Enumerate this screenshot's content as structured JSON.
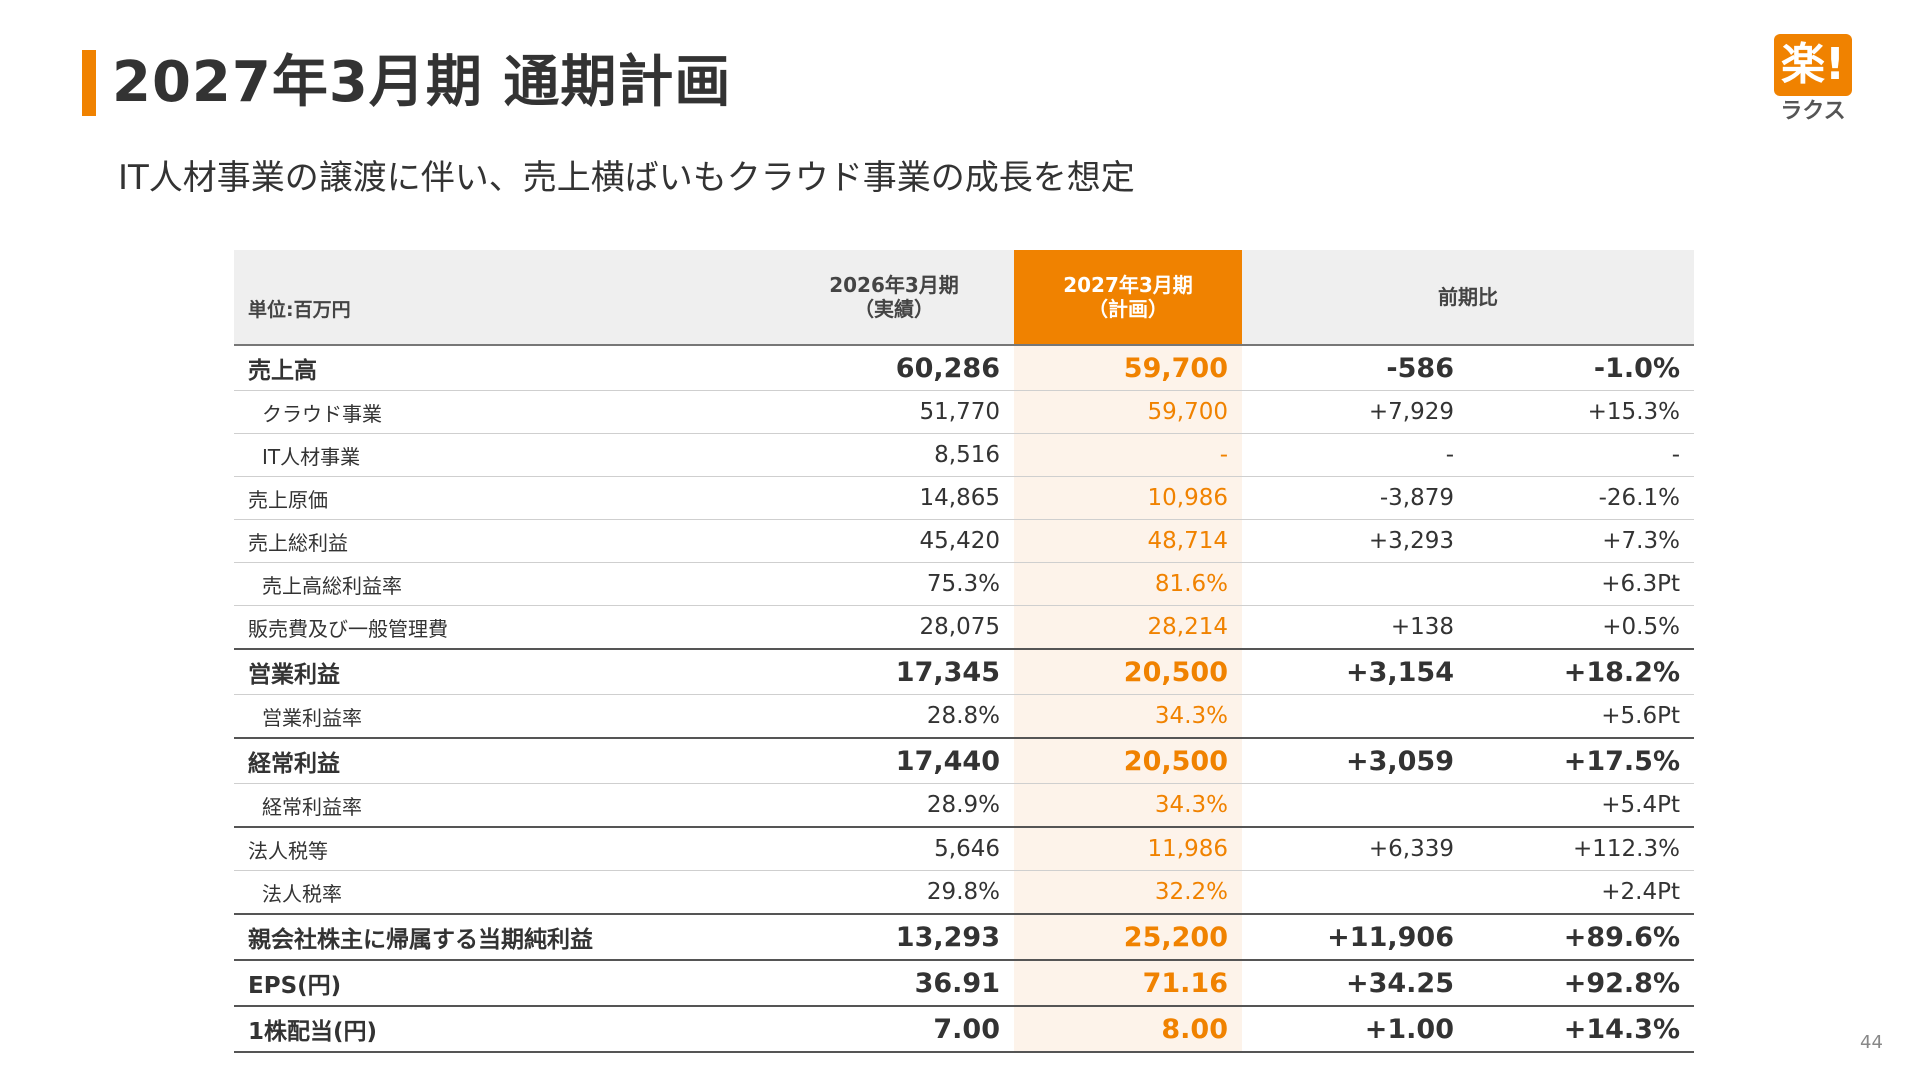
{
  "header": {
    "title": "2027年3月期 通期計画",
    "subtitle": "IT人材事業の譲渡に伴い、売上横ばいもクラウド事業の成長を想定"
  },
  "logo": {
    "mark": "楽!",
    "text": "ラクス"
  },
  "page_number": "44",
  "colors": {
    "accent": "#f08200",
    "accent_bg": "#fdf3ea",
    "header_bg": "#efefef"
  },
  "table": {
    "headers": {
      "unit": "単位:百万円",
      "prev_line1": "2026年3月期",
      "prev_line2": "（実績）",
      "plan_line1": "2027年3月期",
      "plan_line2": "（計画）",
      "diff": "前期比"
    },
    "rows": [
      {
        "label": "売上高",
        "prev": "60,286",
        "plan": "59,700",
        "diff": "-586",
        "pct": "-1.0%"
      },
      {
        "label": "クラウド事業",
        "prev": "51,770",
        "plan": "59,700",
        "diff": "+7,929",
        "pct": "+15.3%"
      },
      {
        "label": "IT人材事業",
        "prev": "8,516",
        "plan": "-",
        "diff": "-",
        "pct": "-"
      },
      {
        "label": "売上原価",
        "prev": "14,865",
        "plan": "10,986",
        "diff": "-3,879",
        "pct": "-26.1%"
      },
      {
        "label": "売上総利益",
        "prev": "45,420",
        "plan": "48,714",
        "diff": "+3,293",
        "pct": "+7.3%"
      },
      {
        "label": "売上高総利益率",
        "prev": "75.3%",
        "plan": "81.6%",
        "diff": "",
        "pct": "+6.3Pt"
      },
      {
        "label": "販売費及び一般管理費",
        "prev": "28,075",
        "plan": "28,214",
        "diff": "+138",
        "pct": "+0.5%"
      },
      {
        "label": "営業利益",
        "prev": "17,345",
        "plan": "20,500",
        "diff": "+3,154",
        "pct": "+18.2%"
      },
      {
        "label": "営業利益率",
        "prev": "28.8%",
        "plan": "34.3%",
        "diff": "",
        "pct": "+5.6Pt"
      },
      {
        "label": "経常利益",
        "prev": "17,440",
        "plan": "20,500",
        "diff": "+3,059",
        "pct": "+17.5%"
      },
      {
        "label": "経常利益率",
        "prev": "28.9%",
        "plan": "34.3%",
        "diff": "",
        "pct": "+5.4Pt"
      },
      {
        "label": "法人税等",
        "prev": "5,646",
        "plan": "11,986",
        "diff": "+6,339",
        "pct": "+112.3%"
      },
      {
        "label": "法人税率",
        "prev": "29.8%",
        "plan": "32.2%",
        "diff": "",
        "pct": "+2.4Pt"
      },
      {
        "label": "親会社株主に帰属する当期純利益",
        "prev": "13,293",
        "plan": "25,200",
        "diff": "+11,906",
        "pct": "+89.6%"
      },
      {
        "label": "EPS(円)",
        "prev": "36.91",
        "plan": "71.16",
        "diff": "+34.25",
        "pct": "+92.8%"
      },
      {
        "label": "1株配当(円)",
        "prev": "7.00",
        "plan": "8.00",
        "diff": "+1.00",
        "pct": "+14.3%"
      }
    ]
  }
}
